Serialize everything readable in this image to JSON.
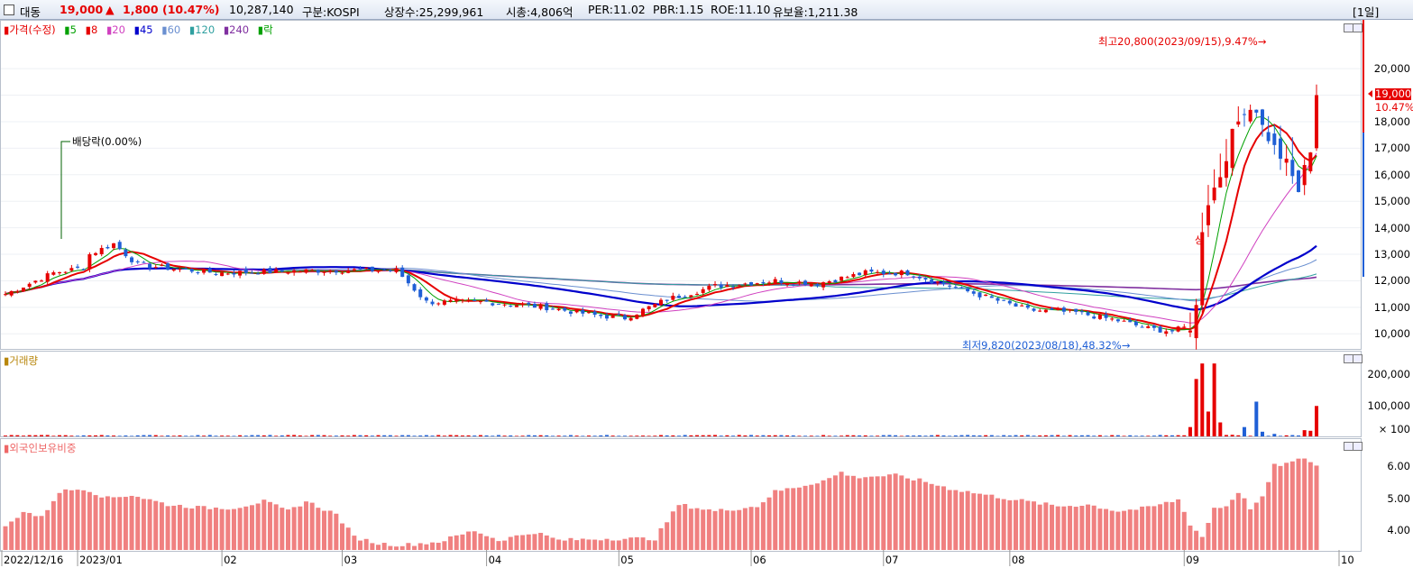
{
  "header": {
    "stock_name": "대동",
    "price": "19,000",
    "change_arrow": "▲",
    "change": "1,800",
    "change_pct": "(10.47%)",
    "volume": "10,287,140",
    "market": "구분:KOSPI",
    "listed": "상장수:25,299,961",
    "cap": "시총:4,806억",
    "per": "PER:11.02",
    "pbr": "PBR:1.15",
    "roe": "ROE:11.10",
    "float": "유보율:1,211.38",
    "period": "[1일]"
  },
  "colors": {
    "up": "#e60000",
    "down": "#1f5fd6",
    "ma5": "#00a000",
    "ma8": "#e60000",
    "ma20": "#d040c0",
    "ma45": "#0000cc",
    "ma60": "#6a8fd0",
    "ma120": "#30a0a0",
    "ma240": "#8030a0"
  },
  "price_legend": {
    "price": "가격(수정)",
    "ma5": "5",
    "ma8": "8",
    "ma20": "20",
    "ma45": "45",
    "ma60": "60",
    "ma120": "120",
    "ma240": "240",
    "ex": "락"
  },
  "volume_legend": "거래량",
  "foreign_legend": "외국인보유비중",
  "annotations": {
    "high": "최고20,800(2023/09/15),9.47%",
    "low": "최저9,820(2023/08/18),48.32%",
    "dividend": "배당락(0.00%)",
    "limit_up": "상"
  },
  "current_price_label": "19,000",
  "current_pct_label": "10.47%",
  "chart_data": [
    {
      "type": "candlestick",
      "title": "가격(수정)",
      "ylim": [
        9500,
        21500
      ],
      "y_ticks": [
        "20,000",
        "19,000",
        "18,000",
        "17,000",
        "16,000",
        "15,000",
        "14,000",
        "13,000",
        "12,000",
        "11,000",
        "10,000"
      ],
      "x_labels": [
        "2022/12/16",
        "2023/01",
        "02",
        "03",
        "04",
        "05",
        "06",
        "07",
        "08",
        "09",
        "10"
      ],
      "anchors": [
        [
          0,
          11500
        ],
        [
          8,
          12300
        ],
        [
          13,
          12500
        ],
        [
          14,
          13000
        ],
        [
          18,
          13400
        ],
        [
          22,
          12600
        ],
        [
          35,
          12300
        ],
        [
          55,
          12400
        ],
        [
          65,
          12400
        ],
        [
          70,
          11200
        ],
        [
          80,
          11200
        ],
        [
          90,
          11000
        ],
        [
          98,
          10700
        ],
        [
          103,
          10600
        ],
        [
          110,
          11300
        ],
        [
          118,
          11800
        ],
        [
          128,
          12000
        ],
        [
          135,
          11900
        ],
        [
          143,
          12300
        ],
        [
          150,
          12300
        ],
        [
          160,
          11600
        ],
        [
          170,
          10900
        ],
        [
          178,
          10800
        ],
        [
          185,
          10500
        ],
        [
          190,
          10200
        ],
        [
          194,
          10100
        ],
        [
          197,
          10300
        ],
        [
          198,
          11000
        ],
        [
          199,
          14000
        ],
        [
          200,
          15000
        ],
        [
          202,
          16000
        ],
        [
          204,
          17500
        ],
        [
          206,
          18500
        ],
        [
          208,
          18500
        ],
        [
          209,
          17800
        ],
        [
          211,
          17000
        ],
        [
          213,
          16400
        ],
        [
          215,
          15400
        ],
        [
          217,
          17000
        ],
        [
          218,
          19000
        ]
      ],
      "ma_period_lines": [
        "5",
        "8",
        "20",
        "45",
        "60",
        "120",
        "240"
      ],
      "last_close": 19000
    },
    {
      "type": "bar",
      "title": "거래량",
      "ylim": [
        0,
        250000
      ],
      "y_ticks": [
        "200,000",
        "100,000",
        "× 100"
      ],
      "spikes": [
        [
          197,
          30000
        ],
        [
          198,
          185000
        ],
        [
          199,
          235000
        ],
        [
          200,
          80000
        ],
        [
          201,
          235000
        ],
        [
          202,
          45000
        ],
        [
          204,
          5000
        ],
        [
          206,
          30000
        ],
        [
          208,
          112000
        ],
        [
          209,
          15000
        ],
        [
          211,
          8000
        ],
        [
          216,
          20000
        ],
        [
          217,
          18000
        ],
        [
          218,
          98000
        ]
      ],
      "base_volume": 3000
    },
    {
      "type": "bar",
      "title": "외국인보유비중",
      "ylim": [
        3.4,
        6.6
      ],
      "y_ticks": [
        "6.00",
        "5.00",
        "4.00"
      ],
      "anchors": [
        [
          0,
          4.1
        ],
        [
          3,
          4.6
        ],
        [
          6,
          4.4
        ],
        [
          9,
          5.2
        ],
        [
          13,
          5.3
        ],
        [
          17,
          5.0
        ],
        [
          21,
          5.1
        ],
        [
          27,
          4.8
        ],
        [
          33,
          4.7
        ],
        [
          38,
          4.7
        ],
        [
          43,
          4.9
        ],
        [
          47,
          4.6
        ],
        [
          50,
          4.9
        ],
        [
          55,
          4.5
        ],
        [
          58,
          3.8
        ],
        [
          62,
          3.6
        ],
        [
          66,
          3.55
        ],
        [
          72,
          3.65
        ],
        [
          78,
          4.0
        ],
        [
          82,
          3.7
        ],
        [
          88,
          3.95
        ],
        [
          92,
          3.7
        ],
        [
          100,
          3.75
        ],
        [
          108,
          3.75
        ],
        [
          112,
          4.8
        ],
        [
          118,
          4.6
        ],
        [
          125,
          4.75
        ],
        [
          128,
          5.2
        ],
        [
          133,
          5.4
        ],
        [
          137,
          5.6
        ],
        [
          139,
          5.8
        ],
        [
          141,
          5.65
        ],
        [
          148,
          5.7
        ],
        [
          152,
          5.55
        ],
        [
          157,
          5.3
        ],
        [
          163,
          5.1
        ],
        [
          168,
          4.95
        ],
        [
          175,
          4.75
        ],
        [
          180,
          4.8
        ],
        [
          185,
          4.6
        ],
        [
          190,
          4.7
        ],
        [
          195,
          4.95
        ],
        [
          197,
          4.2
        ],
        [
          199,
          3.8
        ],
        [
          201,
          4.7
        ],
        [
          203,
          4.75
        ],
        [
          205,
          5.2
        ],
        [
          207,
          4.7
        ],
        [
          209,
          5.0
        ],
        [
          211,
          6.0
        ],
        [
          214,
          6.1
        ],
        [
          216,
          6.25
        ],
        [
          218,
          6.0
        ]
      ]
    }
  ]
}
